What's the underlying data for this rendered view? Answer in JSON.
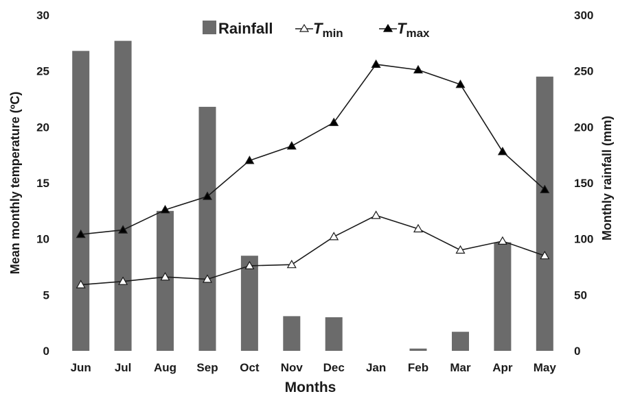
{
  "chart_data": {
    "type": "bar+line",
    "categories": [
      "Jun",
      "Jul",
      "Aug",
      "Sep",
      "Oct",
      "Nov",
      "Dec",
      "Jan",
      "Feb",
      "Mar",
      "Apr",
      "May"
    ],
    "series": [
      {
        "name": "Rainfall",
        "type": "bar",
        "axis": "right",
        "color": "#6b6b6b",
        "values": [
          268,
          277,
          125,
          218,
          85,
          31,
          30,
          0,
          2,
          17,
          97,
          245
        ]
      },
      {
        "name": "Tmin",
        "type": "line",
        "axis": "left",
        "marker": "open-triangle",
        "values": [
          5.9,
          6.2,
          6.6,
          6.4,
          7.6,
          7.7,
          10.2,
          12.1,
          10.9,
          9.0,
          9.8,
          8.5
        ]
      },
      {
        "name": "Tmax",
        "type": "line",
        "axis": "left",
        "marker": "filled-triangle",
        "values": [
          10.4,
          10.8,
          12.6,
          13.8,
          17.0,
          18.3,
          20.4,
          25.6,
          25.1,
          23.8,
          17.8,
          14.4
        ]
      }
    ],
    "legend": {
      "position": "top-center",
      "items": [
        {
          "main": "Rainfall",
          "sub": ""
        },
        {
          "main": "T",
          "sub": "min"
        },
        {
          "main": "T",
          "sub": "max"
        }
      ]
    },
    "xlabel": "Months",
    "ylabel_left": "Mean monthly temperature (ºC)",
    "ylabel_right": "Monthly rainfall (mm)",
    "ylim_left": [
      0,
      30
    ],
    "ylim_right": [
      0,
      300
    ],
    "yticks_left": [
      "0",
      "5",
      "10",
      "15",
      "20",
      "25",
      "30"
    ],
    "yticks_right": [
      "0",
      "50",
      "100",
      "150",
      "200",
      "250",
      "300"
    ],
    "grid": false
  }
}
